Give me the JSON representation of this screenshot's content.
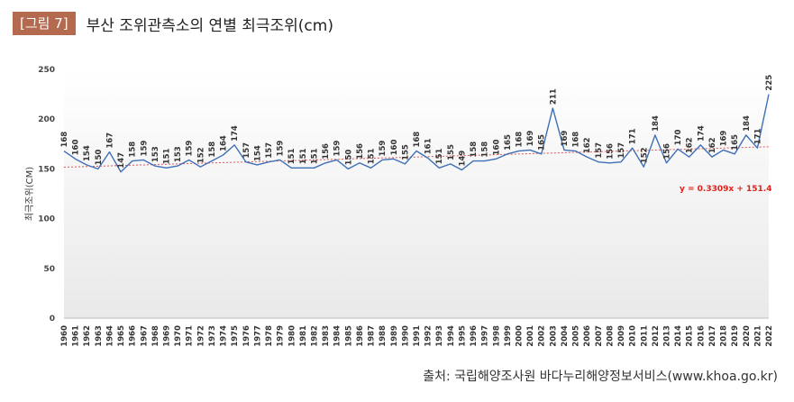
{
  "figure": {
    "badge": "[그림 7]",
    "title": "부산 조위관측소의 연별 최극조위(cm)"
  },
  "source": "출처: 국립해양조사원 바다누리해양정보서비스(www.khoa.go.kr)",
  "colors": {
    "badge_bg": "#b36a4e",
    "line": "#3f6fb5",
    "trend": "#e05555",
    "equation": "#e0201b",
    "gradient_top": "#ffffff",
    "gradient_bottom": "#e9e9e9"
  },
  "chart_data": {
    "type": "line",
    "ylabel": "최극조위(CM)",
    "xlabel": "",
    "ylim": [
      0,
      250
    ],
    "yticks": [
      0,
      50,
      100,
      150,
      200,
      250
    ],
    "grid": false,
    "x": [
      "1960",
      "1961",
      "1962",
      "1963",
      "1964",
      "1965",
      "1966",
      "1967",
      "1968",
      "1969",
      "1970",
      "1971",
      "1972",
      "1973",
      "1974",
      "1975",
      "1976",
      "1977",
      "1978",
      "1979",
      "1980",
      "1981",
      "1982",
      "1983",
      "1984",
      "1985",
      "1986",
      "1987",
      "1988",
      "1989",
      "1990",
      "1991",
      "1992",
      "1993",
      "1994",
      "1995",
      "1996",
      "1997",
      "1998",
      "1999",
      "2000",
      "2001",
      "2002",
      "2003",
      "2004",
      "2005",
      "2006",
      "2007",
      "2008",
      "2009",
      "2010",
      "2011",
      "2012",
      "2013",
      "2014",
      "2015",
      "2016",
      "2017",
      "2018",
      "2019",
      "2020",
      "2021",
      "2022"
    ],
    "series": [
      {
        "values": [
          168,
          160,
          154,
          150,
          167,
          147,
          158,
          159,
          153,
          151,
          153,
          159,
          152,
          158,
          164,
          174,
          157,
          154,
          157,
          159,
          151,
          151,
          151,
          156,
          159,
          150,
          156,
          151,
          159,
          160,
          155,
          168,
          161,
          151,
          155,
          149,
          158,
          158,
          160,
          165,
          168,
          169,
          165,
          211,
          169,
          168,
          162,
          157,
          156,
          157,
          171,
          152,
          184,
          156,
          170,
          162,
          174,
          162,
          169,
          165,
          184,
          171,
          225
        ]
      }
    ],
    "trendline": {
      "equation": "y = 0.3309x + 151.4",
      "slope": 0.3309,
      "intercept": 151.4
    }
  }
}
